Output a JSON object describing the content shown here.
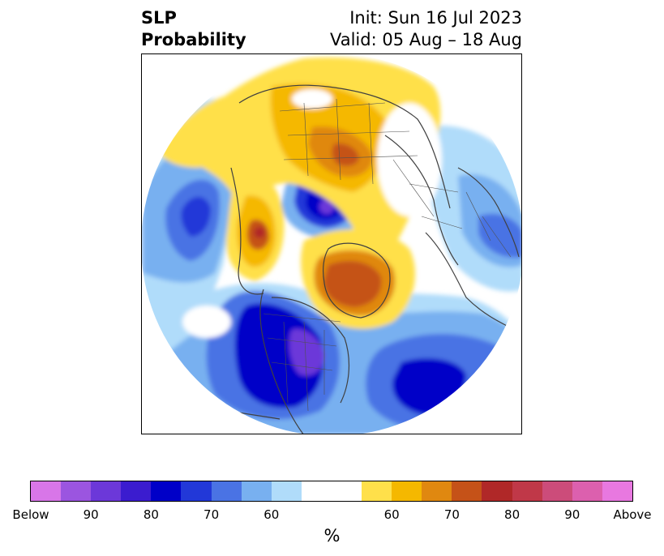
{
  "header": {
    "title_line1": "SLP",
    "title_line2": "Probability",
    "init": "Init: Sun 16 Jul 2023",
    "valid": "Valid: 05 Aug – 18 Aug"
  },
  "colorbar": {
    "colors": [
      "#d876e8",
      "#9b55e0",
      "#6c38d9",
      "#3b1ccf",
      "#0000c8",
      "#2238d8",
      "#4a73e4",
      "#78b0f0",
      "#b0dcfa",
      "#ffffff",
      "#ffe04a",
      "#f5b800",
      "#e08810",
      "#c55218",
      "#b02828",
      "#c03848",
      "#cc4c7a",
      "#dc60ae",
      "#e878e0"
    ],
    "tick_labels": [
      "Below",
      "90",
      "80",
      "70",
      "60",
      "60",
      "70",
      "80",
      "90",
      "Above"
    ],
    "unit": "%"
  },
  "map": {
    "projection": "north-polar-stereographic",
    "variable": "SLP probability",
    "features": [
      "land-outlines",
      "country-borders",
      "state-borders"
    ]
  }
}
